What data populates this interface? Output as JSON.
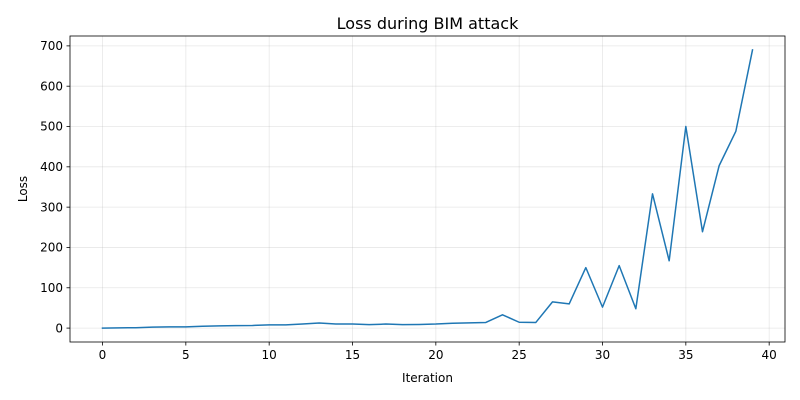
{
  "chart_data": {
    "type": "line",
    "title": "Loss during BIM attack",
    "xlabel": "Iteration",
    "ylabel": "Loss",
    "xlim": [
      -1.95,
      40.95
    ],
    "ylim": [
      -34.5,
      724.5
    ],
    "xticks": [
      0,
      5,
      10,
      15,
      20,
      25,
      30,
      35,
      40
    ],
    "yticks": [
      0,
      100,
      200,
      300,
      400,
      500,
      600,
      700
    ],
    "grid": true,
    "legend": "none",
    "series": [
      {
        "name": "Loss",
        "color": "#1f77b4",
        "x": [
          0,
          1,
          2,
          3,
          4,
          5,
          6,
          7,
          8,
          9,
          10,
          11,
          12,
          13,
          14,
          15,
          16,
          17,
          18,
          19,
          20,
          21,
          22,
          23,
          24,
          25,
          26,
          27,
          28,
          29,
          30,
          31,
          32,
          33,
          34,
          35,
          36,
          37,
          38,
          39
        ],
        "values": [
          0,
          0.5,
          1,
          2.5,
          3,
          3,
          4.5,
          5.5,
          6,
          6.5,
          8,
          8,
          10,
          12.5,
          10,
          10,
          8.5,
          10,
          8.5,
          9,
          10,
          12,
          13,
          14,
          33,
          14.5,
          14,
          65,
          60,
          150,
          52,
          155,
          48,
          333,
          167,
          500,
          239,
          403,
          488,
          690
        ]
      }
    ]
  }
}
